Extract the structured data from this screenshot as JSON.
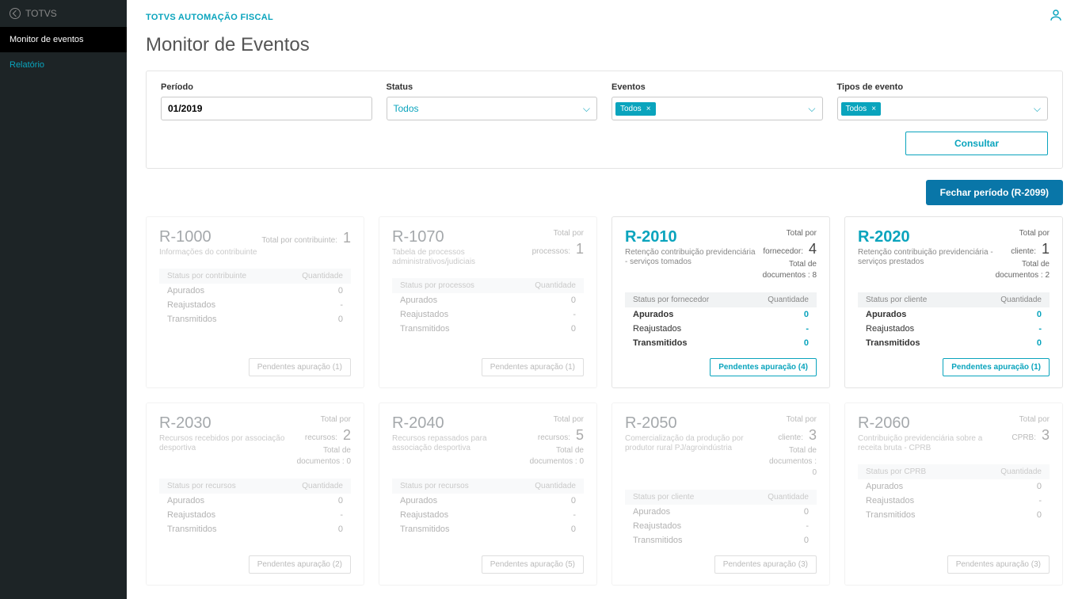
{
  "brand": "TOTVS",
  "app_title": "TOTVS AUTOMAÇÃO FISCAL",
  "nav": {
    "monitor": "Monitor de eventos",
    "relatorio": "Relatório"
  },
  "page_title": "Monitor de Eventos",
  "filters": {
    "periodo_label": "Período",
    "periodo_value": "01/2019",
    "status_label": "Status",
    "status_value": "Todos",
    "eventos_label": "Eventos",
    "eventos_chip": "Todos",
    "tipos_label": "Tipos de evento",
    "tipos_chip": "Todos",
    "consultar": "Consultar"
  },
  "close_period_btn": "Fechar período (R-2099)",
  "status_labels": {
    "apurados": "Apurados",
    "reajustados": "Reajustados",
    "transmitidos": "Transmitidos"
  },
  "cards": [
    {
      "code": "R-1000",
      "active": false,
      "sub": "Informações do contribuinte",
      "total1_label": "Total por contribuinte:",
      "total1_value": "1",
      "total2_label": "",
      "total2_value": "",
      "status_head_left": "Status por contribuinte",
      "status_head_right": "Quantidade",
      "apurados": "0",
      "reajustados": "-",
      "transmitidos": "0",
      "pending": "Pendentes apuração (1)"
    },
    {
      "code": "R-1070",
      "active": false,
      "sub": "Tabela de processos administrativos/judiciais",
      "total1_label": "Total por processos:",
      "total1_value": "1",
      "total2_label": "",
      "total2_value": "",
      "status_head_left": "Status por processos",
      "status_head_right": "Quantidade",
      "apurados": "0",
      "reajustados": "-",
      "transmitidos": "0",
      "pending": "Pendentes apuração (1)"
    },
    {
      "code": "R-2010",
      "active": true,
      "sub": "Retenção contribuição previdenciária - serviços tomados",
      "total1_label": "Total por fornecedor:",
      "total1_value": "4",
      "total2_label": "Total de documentos :",
      "total2_value": "8",
      "status_head_left": "Status por fornecedor",
      "status_head_right": "Quantidade",
      "apurados": "0",
      "reajustados": "-",
      "transmitidos": "0",
      "pending": "Pendentes apuração (4)"
    },
    {
      "code": "R-2020",
      "active": true,
      "sub": "Retenção contribuição previdenciária - serviços prestados",
      "total1_label": "Total por cliente:",
      "total1_value": "1",
      "total2_label": "Total de documentos :",
      "total2_value": "2",
      "status_head_left": "Status por cliente",
      "status_head_right": "Quantidade",
      "apurados": "0",
      "reajustados": "-",
      "transmitidos": "0",
      "pending": "Pendentes apuração (1)"
    },
    {
      "code": "R-2030",
      "active": false,
      "sub": "Recursos recebidos por associação desportiva",
      "total1_label": "Total por recursos:",
      "total1_value": "2",
      "total2_label": "Total de documentos :",
      "total2_value": "0",
      "status_head_left": "Status por recursos",
      "status_head_right": "Quantidade",
      "apurados": "0",
      "reajustados": "-",
      "transmitidos": "0",
      "pending": "Pendentes apuração (2)"
    },
    {
      "code": "R-2040",
      "active": false,
      "sub": "Recursos repassados para associação desportiva",
      "total1_label": "Total por recursos:",
      "total1_value": "5",
      "total2_label": "Total de documentos :",
      "total2_value": "0",
      "status_head_left": "Status por recursos",
      "status_head_right": "Quantidade",
      "apurados": "0",
      "reajustados": "-",
      "transmitidos": "0",
      "pending": "Pendentes apuração (5)"
    },
    {
      "code": "R-2050",
      "active": false,
      "sub": "Comercialização da produção por produtor rural PJ/agroindústria",
      "total1_label": "Total por cliente:",
      "total1_value": "3",
      "total2_label": "Total de documentos :",
      "total2_value": "0",
      "status_head_left": "Status por cliente",
      "status_head_right": "Quantidade",
      "apurados": "0",
      "reajustados": "-",
      "transmitidos": "0",
      "pending": "Pendentes apuração (3)"
    },
    {
      "code": "R-2060",
      "active": false,
      "sub": "Contribuição previdenciária sobre a receita bruta - CPRB",
      "total1_label": "Total por CPRB:",
      "total1_value": "3",
      "total2_label": "",
      "total2_value": "",
      "status_head_left": "Status por CPRB",
      "status_head_right": "Quantidade",
      "apurados": "0",
      "reajustados": "-",
      "transmitidos": "0",
      "pending": "Pendentes apuração (3)"
    }
  ],
  "colors": {
    "accent": "#0aa4bd",
    "primary_btn": "#0976a8",
    "sidebar_bg": "#1d2426",
    "border": "#e4e4e4"
  }
}
